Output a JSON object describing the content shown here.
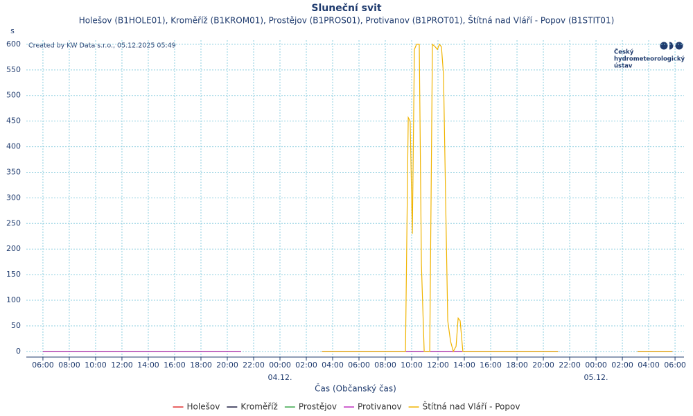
{
  "chart_data": {
    "type": "line",
    "title": "Sluneční svit",
    "subtitle": "Holešov (B1HOLE01), Kroměříž (B1KROM01), Prostějov (B1PROS01), Protivanov (B1PROT01), Štítná nad Vláří - Popov (B1STIT01)",
    "y_unit": "s",
    "watermark": "Created by KW Data s.r.o., 05.12.2025 05:49",
    "logo": [
      "Český",
      "hydrometeorologický",
      "ústav"
    ],
    "xlabel": "Čas (Občanský čas)",
    "xlim": [
      -1.26,
      48.68
    ],
    "xticks": [
      {
        "value": 0,
        "label": "06:00"
      },
      {
        "value": 2,
        "label": "08:00"
      },
      {
        "value": 4,
        "label": "10:00"
      },
      {
        "value": 6,
        "label": "12:00"
      },
      {
        "value": 8,
        "label": "14:00"
      },
      {
        "value": 10,
        "label": "16:00"
      },
      {
        "value": 12,
        "label": "18:00"
      },
      {
        "value": 14,
        "label": "20:00"
      },
      {
        "value": 16,
        "label": "22:00"
      },
      {
        "value": 18,
        "label": "00:00"
      },
      {
        "value": 20,
        "label": "02:00"
      },
      {
        "value": 22,
        "label": "04:00"
      },
      {
        "value": 24,
        "label": "06:00"
      },
      {
        "value": 26,
        "label": "08:00"
      },
      {
        "value": 28,
        "label": "10:00"
      },
      {
        "value": 30,
        "label": "12:00"
      },
      {
        "value": 32,
        "label": "14:00"
      },
      {
        "value": 34,
        "label": "16:00"
      },
      {
        "value": 36,
        "label": "18:00"
      },
      {
        "value": 38,
        "label": "20:00"
      },
      {
        "value": 40,
        "label": "22:00"
      },
      {
        "value": 42,
        "label": "00:00"
      },
      {
        "value": 44,
        "label": "02:00"
      },
      {
        "value": 46,
        "label": "04:00"
      },
      {
        "value": 48,
        "label": "06:00"
      }
    ],
    "date_labels": [
      {
        "value": 18,
        "label": "04.12."
      },
      {
        "value": 42,
        "label": "05.12."
      }
    ],
    "ylim": [
      -11,
      608
    ],
    "yticks": [
      0,
      50,
      100,
      150,
      200,
      250,
      300,
      350,
      400,
      450,
      500,
      550,
      600
    ],
    "grid": true,
    "series": [
      {
        "name": "Holešov",
        "color": "#e03030",
        "x": [
          0,
          15.05,
          16,
          21.2,
          39.11,
          40,
          45.16,
          47.79
        ],
        "values": [
          0,
          0,
          null,
          0,
          0,
          null,
          0,
          0
        ]
      },
      {
        "name": "Kroměříž",
        "color": "#1a1a40",
        "x": [
          0,
          15.05,
          16,
          21.2,
          39.11,
          40,
          45.16,
          47.79
        ],
        "values": [
          0,
          0,
          null,
          0,
          0,
          null,
          0,
          0
        ]
      },
      {
        "name": "Prostějov",
        "color": "#3aa54a",
        "x": [
          0,
          15.05,
          16,
          21.2,
          39.11,
          40,
          45.16,
          47.79
        ],
        "values": [
          0,
          0,
          null,
          0,
          0,
          null,
          0,
          0
        ]
      },
      {
        "name": "Protivanov",
        "color": "#c030c0",
        "x": [
          0,
          15.05,
          16,
          21.2,
          39.11,
          40,
          45.16,
          47.79
        ],
        "values": [
          0,
          0,
          null,
          0,
          0,
          null,
          0,
          0
        ]
      },
      {
        "name": "Štítná nad Vláří - Popov",
        "color": "#f0b400",
        "x": [
          21.2,
          27.53,
          27.74,
          27.89,
          28.05,
          28.21,
          28.37,
          28.58,
          28.74,
          28.95,
          29.37,
          29.58,
          29.79,
          29.95,
          30.11,
          30.26,
          30.42,
          30.58,
          30.74,
          30.95,
          31.16,
          31.37,
          31.53,
          31.68,
          31.89,
          39.11,
          40,
          45.16,
          47.79
        ],
        "values": [
          0,
          0,
          457,
          450,
          230,
          590,
          600,
          600,
          170,
          0,
          0,
          600,
          595,
          590,
          600,
          595,
          540,
          300,
          60,
          20,
          0,
          10,
          65,
          60,
          0,
          0,
          null,
          0,
          0
        ]
      }
    ]
  }
}
